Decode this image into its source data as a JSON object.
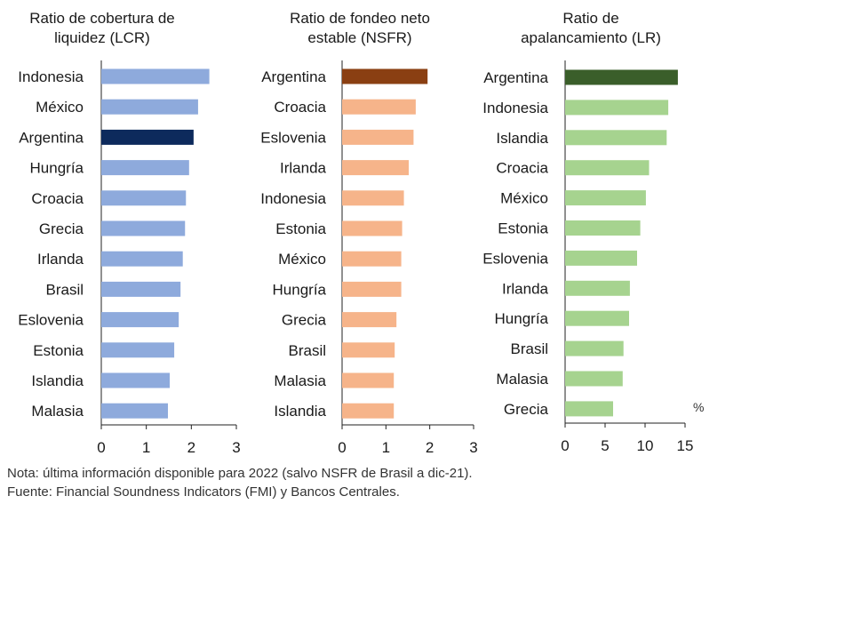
{
  "chart_data": [
    {
      "type": "bar",
      "orientation": "horizontal",
      "title": "Ratio de cobertura de\nliquidez (LCR)",
      "categories": [
        "Indonesia",
        "México",
        "Argentina",
        "Hungría",
        "Croacia",
        "Grecia",
        "Irlanda",
        "Brasil",
        "Eslovenia",
        "Estonia",
        "Islandia",
        "Malasia"
      ],
      "values": [
        2.4,
        2.15,
        2.05,
        1.95,
        1.88,
        1.86,
        1.81,
        1.76,
        1.72,
        1.62,
        1.52,
        1.48
      ],
      "xlim": [
        0,
        3
      ],
      "xticks": [
        "0",
        "1",
        "2",
        "3"
      ],
      "bar_color": "#8eaadc",
      "highlight_category": "Argentina",
      "highlight_color": "#0d2a5c"
    },
    {
      "type": "bar",
      "orientation": "horizontal",
      "title": "Ratio de fondeo neto\nestable (NSFR)",
      "categories": [
        "Argentina",
        "Croacia",
        "Eslovenia",
        "Irlanda",
        "Indonesia",
        "Estonia",
        "México",
        "Hungría",
        "Grecia",
        "Brasil",
        "Malasia",
        "Islandia"
      ],
      "values": [
        1.95,
        1.68,
        1.63,
        1.52,
        1.41,
        1.37,
        1.35,
        1.35,
        1.24,
        1.2,
        1.18,
        1.18
      ],
      "xlim": [
        0,
        3
      ],
      "xticks": [
        "0",
        "1",
        "2",
        "3"
      ],
      "bar_color": "#f6b48a",
      "highlight_category": "Argentina",
      "highlight_color": "#8a3f12"
    },
    {
      "type": "bar",
      "orientation": "horizontal",
      "title": "Ratio de\napalancamiento (LR)",
      "categories": [
        "Argentina",
        "Indonesia",
        "Islandia",
        "Croacia",
        "México",
        "Estonia",
        "Eslovenia",
        "Irlanda",
        "Hungría",
        "Brasil",
        "Malasia",
        "Grecia"
      ],
      "values": [
        14.1,
        12.9,
        12.7,
        10.5,
        10.1,
        9.4,
        9.0,
        8.1,
        8.0,
        7.3,
        7.2,
        6.0
      ],
      "xlim": [
        0,
        15
      ],
      "xticks": [
        "0",
        "5",
        "10",
        "15"
      ],
      "unit": "%",
      "bar_color": "#a6d38f",
      "highlight_category": "Argentina",
      "highlight_color": "#3a5e2a"
    }
  ],
  "notes": {
    "nota": "Nota: última información disponible para 2022 (salvo NSFR de Brasil a dic-21).",
    "fuente": "Fuente: Financial Soundness Indicators (FMI) y Bancos Centrales."
  }
}
